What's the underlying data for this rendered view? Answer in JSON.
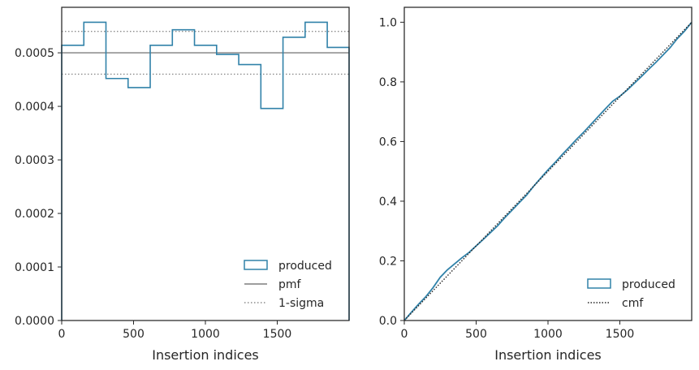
{
  "colors": {
    "produced": "#3182a9",
    "pmf": "#7f7f7f",
    "sigma": "#8c8c8c",
    "cmf": "#262626",
    "axes": "#262626"
  },
  "chart_data": [
    {
      "type": "histogram",
      "xlabel": "Insertion indices",
      "ylabel": "",
      "xlim": [
        0,
        2000
      ],
      "ylim": [
        0,
        0.000585
      ],
      "xticks": [
        0,
        500,
        1000,
        1500
      ],
      "xtick_labels": [
        "0",
        "500",
        "1000",
        "1500"
      ],
      "yticks": [
        0,
        0.0001,
        0.0002,
        0.0003,
        0.0004,
        0.0005
      ],
      "ytick_labels": [
        "0.0000",
        "0.0001",
        "0.0002",
        "0.0003",
        "0.0004",
        "0.0005"
      ],
      "bin_edges": [
        0,
        154,
        308,
        462,
        616,
        770,
        924,
        1078,
        1232,
        1386,
        1540,
        1694,
        1848,
        2000
      ],
      "series": [
        {
          "name": "produced",
          "kind": "step",
          "values": [
            0.000514,
            0.000557,
            0.000452,
            0.000435,
            0.000514,
            0.000543,
            0.000514,
            0.000497,
            0.000478,
            0.000396,
            0.000529,
            0.000557,
            0.00051
          ]
        },
        {
          "name": "pmf",
          "kind": "hline",
          "y": 0.0005
        },
        {
          "name": "1-sigma",
          "kind": "hline-pair",
          "y": [
            0.00054,
            0.00046
          ]
        }
      ],
      "legend": {
        "placement": "lower-right",
        "entries": [
          "produced",
          "pmf",
          "1-sigma"
        ]
      },
      "grid": false
    },
    {
      "type": "line",
      "xlabel": "Insertion indices",
      "ylabel": "",
      "xlim": [
        0,
        2000
      ],
      "ylim": [
        0,
        1.05
      ],
      "xticks": [
        0,
        500,
        1000,
        1500
      ],
      "xtick_labels": [
        "0",
        "500",
        "1000",
        "1500"
      ],
      "yticks": [
        0,
        0.2,
        0.4,
        0.6,
        0.8,
        1.0
      ],
      "ytick_labels": [
        "0.0",
        "0.2",
        "0.4",
        "0.6",
        "0.8",
        "1.0"
      ],
      "series": [
        {
          "name": "produced",
          "kind": "step",
          "x": [
            0,
            50,
            100,
            150,
            200,
            250,
            300,
            350,
            400,
            450,
            500,
            550,
            600,
            650,
            700,
            750,
            800,
            850,
            900,
            950,
            1000,
            1050,
            1100,
            1150,
            1200,
            1250,
            1300,
            1350,
            1400,
            1450,
            1500,
            1550,
            1600,
            1650,
            1700,
            1750,
            1800,
            1850,
            1900,
            1950,
            2000
          ],
          "y": [
            0,
            0.028,
            0.055,
            0.08,
            0.11,
            0.145,
            0.17,
            0.19,
            0.21,
            0.228,
            0.25,
            0.272,
            0.295,
            0.318,
            0.345,
            0.37,
            0.395,
            0.42,
            0.45,
            0.478,
            0.505,
            0.53,
            0.557,
            0.582,
            0.608,
            0.632,
            0.658,
            0.684,
            0.71,
            0.735,
            0.752,
            0.772,
            0.795,
            0.818,
            0.842,
            0.865,
            0.89,
            0.915,
            0.945,
            0.97,
            1.0
          ]
        },
        {
          "name": "cmf",
          "kind": "dotted",
          "x": [
            0,
            2000
          ],
          "y": [
            0,
            1.0
          ]
        }
      ],
      "legend": {
        "placement": "lower-right",
        "entries": [
          "produced",
          "cmf"
        ]
      },
      "grid": false
    }
  ]
}
